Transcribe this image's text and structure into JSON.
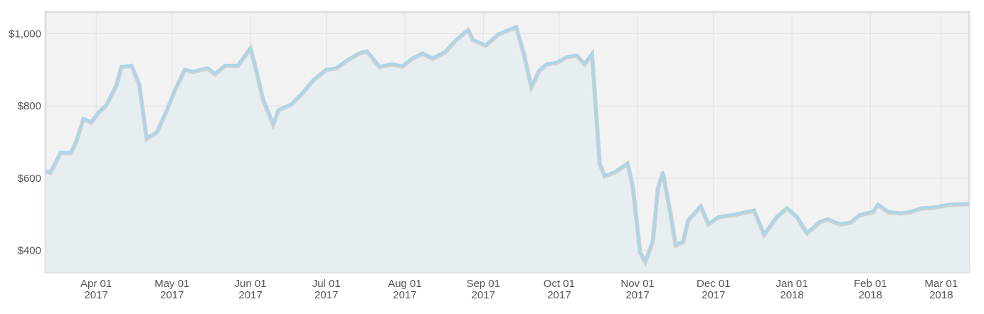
{
  "chart_data": {
    "type": "area",
    "x": [
      "2017-03-12",
      "2017-03-14",
      "2017-03-18",
      "2017-03-22",
      "2017-03-24",
      "2017-03-27",
      "2017-03-30",
      "2017-04-02",
      "2017-04-05",
      "2017-04-09",
      "2017-04-11",
      "2017-04-15",
      "2017-04-18",
      "2017-04-21",
      "2017-04-25",
      "2017-04-29",
      "2017-05-02",
      "2017-05-06",
      "2017-05-09",
      "2017-05-15",
      "2017-05-18",
      "2017-05-22",
      "2017-05-27",
      "2017-06-01",
      "2017-06-03",
      "2017-06-06",
      "2017-06-10",
      "2017-06-12",
      "2017-06-17",
      "2017-06-21",
      "2017-06-26",
      "2017-07-01",
      "2017-07-05",
      "2017-07-09",
      "2017-07-14",
      "2017-07-17",
      "2017-07-22",
      "2017-07-27",
      "2017-07-31",
      "2017-08-04",
      "2017-08-08",
      "2017-08-12",
      "2017-08-17",
      "2017-08-21",
      "2017-08-26",
      "2017-08-28",
      "2017-09-02",
      "2017-09-07",
      "2017-09-14",
      "2017-09-17",
      "2017-09-20",
      "2017-09-23",
      "2017-09-26",
      "2017-09-30",
      "2017-10-04",
      "2017-10-08",
      "2017-10-11",
      "2017-10-14",
      "2017-10-17",
      "2017-10-19",
      "2017-10-23",
      "2017-10-28",
      "2017-10-30",
      "2017-11-02",
      "2017-11-04",
      "2017-11-07",
      "2017-11-09",
      "2017-11-11",
      "2017-11-14",
      "2017-11-16",
      "2017-11-19",
      "2017-11-21",
      "2017-11-26",
      "2017-11-29",
      "2017-12-03",
      "2017-12-09",
      "2017-12-17",
      "2017-12-21",
      "2017-12-26",
      "2017-12-30",
      "2018-01-03",
      "2018-01-07",
      "2018-01-12",
      "2018-01-15",
      "2018-01-20",
      "2018-01-24",
      "2018-01-28",
      "2018-02-02",
      "2018-02-04",
      "2018-02-08",
      "2018-02-13",
      "2018-02-17",
      "2018-02-21",
      "2018-02-26",
      "2018-03-04",
      "2018-03-12"
    ],
    "series": [
      {
        "color": "#a9d6ea",
        "values": [
          620,
          618,
          672,
          672,
          700,
          766,
          756,
          784,
          803,
          858,
          910,
          913,
          862,
          711,
          729,
          790,
          843,
          902,
          896,
          906,
          890,
          913,
          913,
          961,
          908,
          819,
          750,
          790,
          805,
          833,
          874,
          902,
          906,
          927,
          947,
          953,
          910,
          917,
          911,
          933,
          947,
          933,
          951,
          982,
          1012,
          984,
          969,
          1000,
          1020,
          947,
          854,
          898,
          917,
          921,
          937,
          941,
          917,
          945,
          642,
          607,
          618,
          642,
          583,
          396,
          370,
          426,
          573,
          617,
          504,
          416,
          426,
          485,
          524,
          474,
          494,
          500,
          512,
          445,
          494,
          518,
          494,
          449,
          480,
          488,
          474,
          478,
          500,
          508,
          528,
          508,
          504,
          508,
          518,
          520,
          528,
          530
        ]
      }
    ],
    "xlim": [
      "2017-03-12",
      "2018-03-12"
    ],
    "xticks": [
      {
        "value": "2017-04-01",
        "label": [
          "Apr 01",
          "2017"
        ]
      },
      {
        "value": "2017-05-01",
        "label": [
          "May 01",
          "2017"
        ]
      },
      {
        "value": "2017-06-01",
        "label": [
          "Jun 01",
          "2017"
        ]
      },
      {
        "value": "2017-07-01",
        "label": [
          "Jul 01",
          "2017"
        ]
      },
      {
        "value": "2017-08-01",
        "label": [
          "Aug 01",
          "2017"
        ]
      },
      {
        "value": "2017-09-01",
        "label": [
          "Sep 01",
          "2017"
        ]
      },
      {
        "value": "2017-10-01",
        "label": [
          "Oct 01",
          "2017"
        ]
      },
      {
        "value": "2017-11-01",
        "label": [
          "Nov 01",
          "2017"
        ]
      },
      {
        "value": "2017-12-01",
        "label": [
          "Dec 01",
          "2017"
        ]
      },
      {
        "value": "2018-01-01",
        "label": [
          "Jan 01",
          "2018"
        ]
      },
      {
        "value": "2018-02-01",
        "label": [
          "Feb 01",
          "2018"
        ]
      },
      {
        "value": "2018-03-01",
        "label": [
          "Mar 01",
          "2018"
        ]
      }
    ],
    "ylim": [
      340,
      1060
    ],
    "yticks": [
      {
        "value": 400,
        "label": "$400"
      },
      {
        "value": 600,
        "label": "$600"
      },
      {
        "value": 800,
        "label": "$800"
      },
      {
        "value": 1000,
        "label": "$1,000"
      }
    ],
    "grid": true
  }
}
